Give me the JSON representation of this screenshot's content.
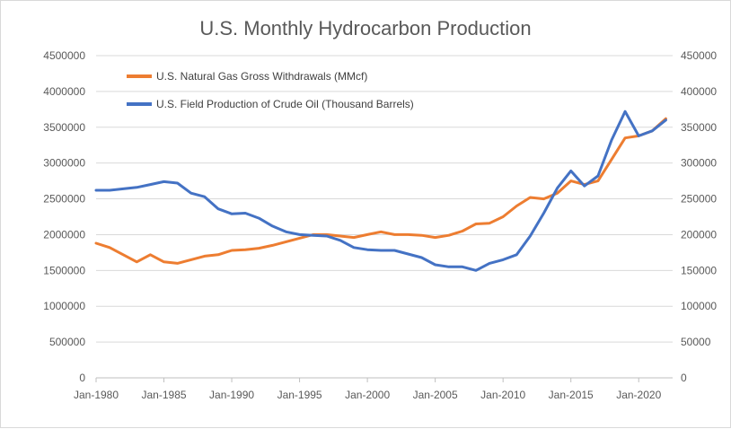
{
  "chart_data": {
    "type": "line",
    "title": "U.S. Monthly Hydrocarbon Production",
    "xlabel": "",
    "ylabel": "",
    "x_tick_labels": [
      "Jan-1980",
      "Jan-1985",
      "Jan-1990",
      "Jan-1995",
      "Jan-2000",
      "Jan-2005",
      "Jan-2010",
      "Jan-2015",
      "Jan-2020"
    ],
    "x_range": [
      1980,
      2022.5
    ],
    "y_left_ticks": [
      "0",
      "500000",
      "1000000",
      "1500000",
      "2000000",
      "2500000",
      "3000000",
      "3500000",
      "4000000",
      "4500000"
    ],
    "y_right_ticks": [
      "0",
      "50000",
      "100000",
      "150000",
      "200000",
      "250000",
      "300000",
      "350000",
      "400000",
      "450000"
    ],
    "y_left_lim": [
      0,
      4500000
    ],
    "y_right_lim": [
      0,
      450000
    ],
    "grid": true,
    "legend_position": "top-left",
    "series": [
      {
        "name": "U.S. Natural Gas Gross Withdrawals (MMcf)",
        "axis": "left",
        "color": "#ED7D31",
        "x": [
          1980,
          1981,
          1982,
          1983,
          1984,
          1985,
          1986,
          1987,
          1988,
          1989,
          1990,
          1991,
          1992,
          1993,
          1994,
          1995,
          1996,
          1997,
          1998,
          1999,
          2000,
          2001,
          2002,
          2003,
          2004,
          2005,
          2006,
          2007,
          2008,
          2009,
          2010,
          2011,
          2012,
          2013,
          2014,
          2015,
          2016,
          2017,
          2018,
          2019,
          2020,
          2021,
          2022
        ],
        "values": [
          1880000,
          1820000,
          1720000,
          1620000,
          1720000,
          1620000,
          1600000,
          1650000,
          1700000,
          1720000,
          1780000,
          1790000,
          1810000,
          1850000,
          1900000,
          1950000,
          2000000,
          2000000,
          1980000,
          1960000,
          2000000,
          2040000,
          2000000,
          2000000,
          1990000,
          1960000,
          1990000,
          2050000,
          2150000,
          2160000,
          2250000,
          2400000,
          2520000,
          2500000,
          2580000,
          2750000,
          2700000,
          2750000,
          3050000,
          3350000,
          3380000,
          3450000,
          3620000
        ]
      },
      {
        "name": "U.S. Field Production of Crude Oil (Thousand Barrels)",
        "axis": "right",
        "color": "#4472C4",
        "x": [
          1980,
          1981,
          1982,
          1983,
          1984,
          1985,
          1986,
          1987,
          1988,
          1989,
          1990,
          1991,
          1992,
          1993,
          1994,
          1995,
          1996,
          1997,
          1998,
          1999,
          2000,
          2001,
          2002,
          2003,
          2004,
          2005,
          2006,
          2007,
          2008,
          2009,
          2010,
          2011,
          2012,
          2013,
          2014,
          2015,
          2016,
          2017,
          2018,
          2019,
          2020,
          2021,
          2022
        ],
        "values": [
          262000,
          262000,
          264000,
          266000,
          270000,
          274000,
          272000,
          258000,
          253000,
          236000,
          229000,
          230000,
          223000,
          212000,
          204000,
          200000,
          199000,
          198000,
          192000,
          182000,
          179000,
          178000,
          178000,
          173000,
          168000,
          158000,
          155000,
          155000,
          150000,
          160000,
          165000,
          172000,
          198000,
          230000,
          265000,
          289000,
          268000,
          282000,
          332000,
          372000,
          338000,
          345000,
          360000
        ]
      }
    ]
  }
}
